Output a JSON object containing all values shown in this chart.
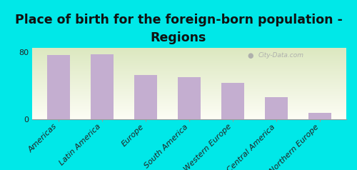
{
  "title": "Place of birth for the foreign-born population -\nRegions",
  "categories": [
    "Americas",
    "Latin America",
    "Europe",
    "South America",
    "Western Europe",
    "Central America",
    "Northern Europe"
  ],
  "values": [
    76,
    77,
    52,
    50,
    43,
    26,
    7
  ],
  "bar_color": "#c4aed0",
  "background_outer": "#00e8e8",
  "gradient_top_left": "#dce8c0",
  "gradient_bottom_right": "#fdfdf5",
  "ylim": [
    0,
    85
  ],
  "yticks": [
    0,
    80
  ],
  "title_fontsize": 12.5,
  "tick_fontsize": 8,
  "watermark": "City-Data.com"
}
